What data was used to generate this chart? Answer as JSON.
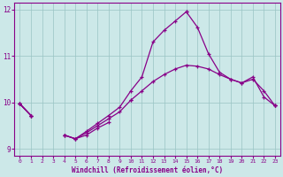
{
  "xlabel": "Windchill (Refroidissement éolien,°C)",
  "x": [
    0,
    1,
    2,
    3,
    4,
    5,
    6,
    7,
    8,
    9,
    10,
    11,
    12,
    13,
    14,
    15,
    16,
    17,
    18,
    19,
    20,
    21,
    22,
    23
  ],
  "y1": [
    9.97,
    9.72,
    null,
    null,
    null,
    null,
    null,
    null,
    null,
    null,
    10.05,
    null,
    null,
    null,
    null,
    11.95,
    null,
    null,
    null,
    null,
    null,
    null,
    null,
    9.93
  ],
  "y2": [
    9.97,
    9.72,
    null,
    null,
    9.3,
    9.22,
    9.3,
    9.45,
    9.57,
    null,
    null,
    null,
    null,
    null,
    null,
    null,
    null,
    null,
    null,
    null,
    null,
    null,
    null,
    9.93
  ],
  "y3": [
    9.97,
    9.72,
    null,
    null,
    9.3,
    9.22,
    9.35,
    9.5,
    9.65,
    9.8,
    10.05,
    10.25,
    10.45,
    10.6,
    10.72,
    10.8,
    10.78,
    10.72,
    10.6,
    10.5,
    10.42,
    10.5,
    10.25,
    9.93
  ],
  "y4": [
    9.97,
    9.72,
    null,
    null,
    9.3,
    9.22,
    9.38,
    9.55,
    9.72,
    9.9,
    10.25,
    10.55,
    11.3,
    11.55,
    11.75,
    11.95,
    11.62,
    11.05,
    10.65,
    10.5,
    10.42,
    10.55,
    10.12,
    9.93
  ],
  "ylim": [
    8.85,
    12.15
  ],
  "xlim": [
    -0.5,
    23.5
  ],
  "yticks": [
    9,
    10,
    11,
    12
  ],
  "xticks": [
    0,
    1,
    2,
    3,
    4,
    5,
    6,
    7,
    8,
    9,
    10,
    11,
    12,
    13,
    14,
    15,
    16,
    17,
    18,
    19,
    20,
    21,
    22,
    23
  ],
  "line_color": "#880088",
  "bg_color": "#cce8e8",
  "grid_color": "#99c4c4"
}
